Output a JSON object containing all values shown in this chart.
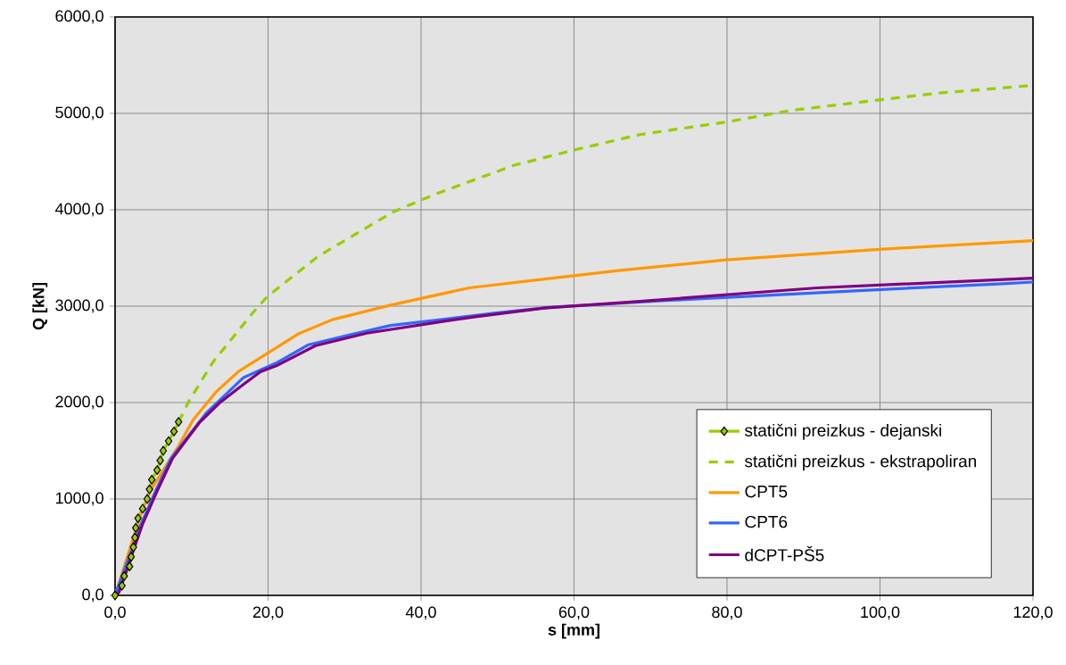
{
  "chart_data": {
    "type": "line",
    "xlabel": "s [mm]",
    "ylabel": "Q [kN]",
    "xlim": [
      0,
      120
    ],
    "ylim": [
      0,
      6000
    ],
    "xticks": [
      {
        "value": 0,
        "label": "0,0"
      },
      {
        "value": 20,
        "label": "20,0"
      },
      {
        "value": 40,
        "label": "40,0"
      },
      {
        "value": 60,
        "label": "60,0"
      },
      {
        "value": 80,
        "label": "80,0"
      },
      {
        "value": 100,
        "label": "100,0"
      },
      {
        "value": 120,
        "label": "120,0"
      }
    ],
    "yticks": [
      {
        "value": 0,
        "label": "0,0"
      },
      {
        "value": 1000,
        "label": "1000,0"
      },
      {
        "value": 2000,
        "label": "2000,0"
      },
      {
        "value": 3000,
        "label": "3000,0"
      },
      {
        "value": 4000,
        "label": "4000,0"
      },
      {
        "value": 5000,
        "label": "5000,0"
      },
      {
        "value": 6000,
        "label": "6000,0"
      }
    ],
    "grid": true,
    "legend": "bottom right",
    "series": [
      {
        "name": "statični preizkus - dejanski",
        "color": "#99cc00",
        "marker": "diamond",
        "line_style": "solid",
        "x": [
          0,
          0.9,
          1.2,
          1.9,
          2.1,
          2.4,
          2.6,
          2.7,
          3.0,
          3.6,
          4.2,
          4.5,
          4.8,
          5.5,
          5.9,
          6.3,
          7.0,
          7.7,
          8.3
        ],
        "values": [
          0,
          100,
          200,
          300,
          400,
          500,
          600,
          700,
          800,
          900,
          1000,
          1100,
          1200,
          1300,
          1400,
          1500,
          1600,
          1700,
          1800
        ]
      },
      {
        "name": "statični preizkus - ekstrapoliran",
        "color": "#99cc00",
        "line_style": "dashed",
        "x": [
          8.3,
          9.7,
          12.8,
          18.1,
          19.9,
          26.6,
          36.4,
          41.8,
          52.1,
          60,
          68.6,
          79.9,
          88.3,
          99.9,
          107.6,
          120
        ],
        "values": [
          1800,
          2020,
          2420,
          2940,
          3100,
          3520,
          3980,
          4160,
          4460,
          4620,
          4780,
          4910,
          5030,
          5140,
          5210,
          5290
        ]
      },
      {
        "name": "CPT5",
        "color": "#ff9900",
        "line_style": "solid",
        "x": [
          0,
          3.6,
          4.8,
          8.3,
          10.2,
          13.2,
          16.1,
          23.9,
          28.4,
          36.0,
          46.3,
          54.9,
          65.8,
          79.9,
          99.9,
          120
        ],
        "values": [
          0,
          900,
          1110,
          1550,
          1820,
          2110,
          2320,
          2710,
          2860,
          3010,
          3190,
          3270,
          3370,
          3480,
          3590,
          3680
        ]
      },
      {
        "name": "CPT6",
        "color": "#3366ff",
        "line_style": "solid",
        "x": [
          0,
          3.4,
          5.4,
          7.3,
          11.9,
          16.8,
          21.3,
          25.3,
          31.1,
          36.0,
          43.6,
          49.8,
          57.0,
          72.5,
          94.4,
          101.9,
          115.5,
          120
        ],
        "values": [
          0,
          740,
          1100,
          1420,
          1890,
          2260,
          2420,
          2600,
          2710,
          2800,
          2870,
          2930,
          2990,
          3060,
          3150,
          3180,
          3230,
          3250
        ]
      },
      {
        "name": "dCPT-PŠ5",
        "color": "#800080",
        "line_style": "solid",
        "x": [
          0,
          0.5,
          3.6,
          5.6,
          7.5,
          11.0,
          13.7,
          16.8,
          19.0,
          21.3,
          26.2,
          32.9,
          43.6,
          47.1,
          56.1,
          68.6,
          91.8,
          120
        ],
        "values": [
          0,
          30,
          740,
          1100,
          1420,
          1790,
          2000,
          2190,
          2320,
          2390,
          2590,
          2720,
          2850,
          2890,
          2980,
          3050,
          3190,
          3290
        ]
      }
    ]
  }
}
